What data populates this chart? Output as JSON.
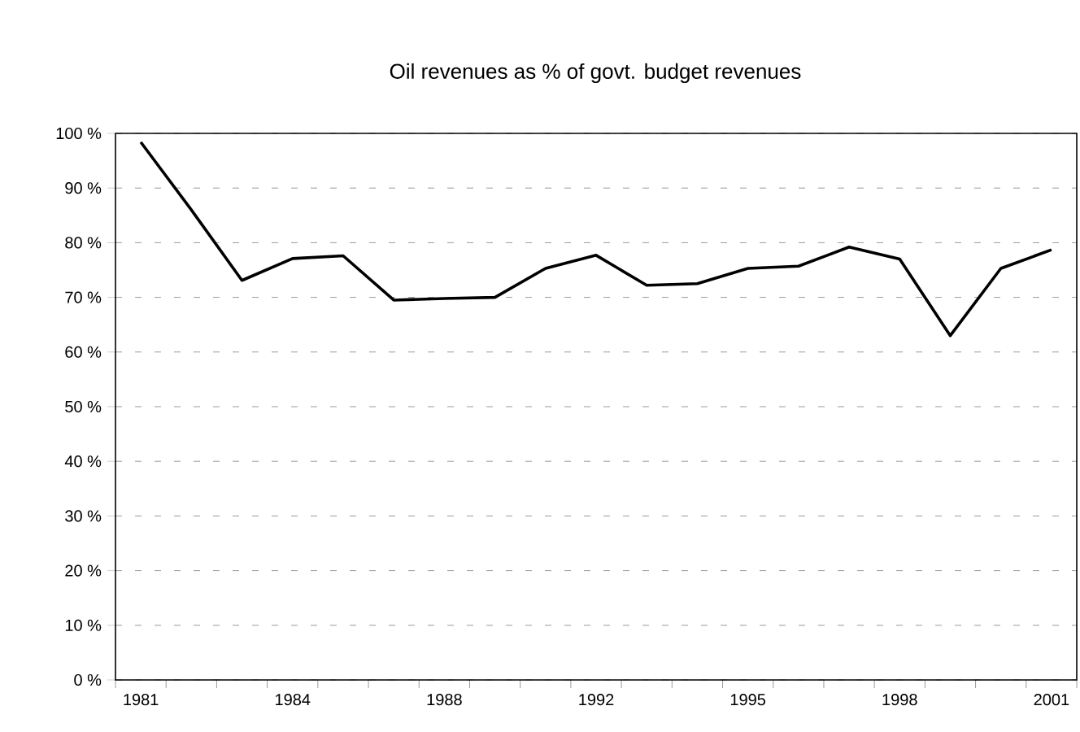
{
  "chart_data": {
    "type": "line",
    "title": "Oil revenues as % of govt. budget revenues",
    "categories": [
      "1981",
      null,
      null,
      "1984",
      null,
      null,
      "1988",
      null,
      null,
      "1992",
      null,
      null,
      "1995",
      null,
      null,
      "1998",
      null,
      null,
      "2001"
    ],
    "series": [
      {
        "color": "#000000",
        "values": [
          98.4,
          86,
          73.1,
          77.1,
          77.6,
          69.5,
          69.8,
          70.0,
          75.3,
          77.7,
          72.2,
          72.5,
          75.3,
          75.7,
          79.2,
          77.0,
          63.0,
          75.3,
          78.7
        ]
      }
    ],
    "ylim": [
      0,
      100
    ],
    "yticks": [
      {
        "value": 0,
        "label": "0 %"
      },
      {
        "value": 10,
        "label": "10 %"
      },
      {
        "value": 20,
        "label": "20 %"
      },
      {
        "value": 30,
        "label": "30 %"
      },
      {
        "value": 40,
        "label": "40 %"
      },
      {
        "value": 50,
        "label": "50 %"
      },
      {
        "value": 60,
        "label": "60 %"
      },
      {
        "value": 70,
        "label": "70 %"
      },
      {
        "value": 80,
        "label": "80 %"
      },
      {
        "value": 90,
        "label": "90 %"
      },
      {
        "value": 100,
        "label": "100 %"
      }
    ],
    "grid": "y",
    "marker": "none",
    "line_style": "solid"
  }
}
